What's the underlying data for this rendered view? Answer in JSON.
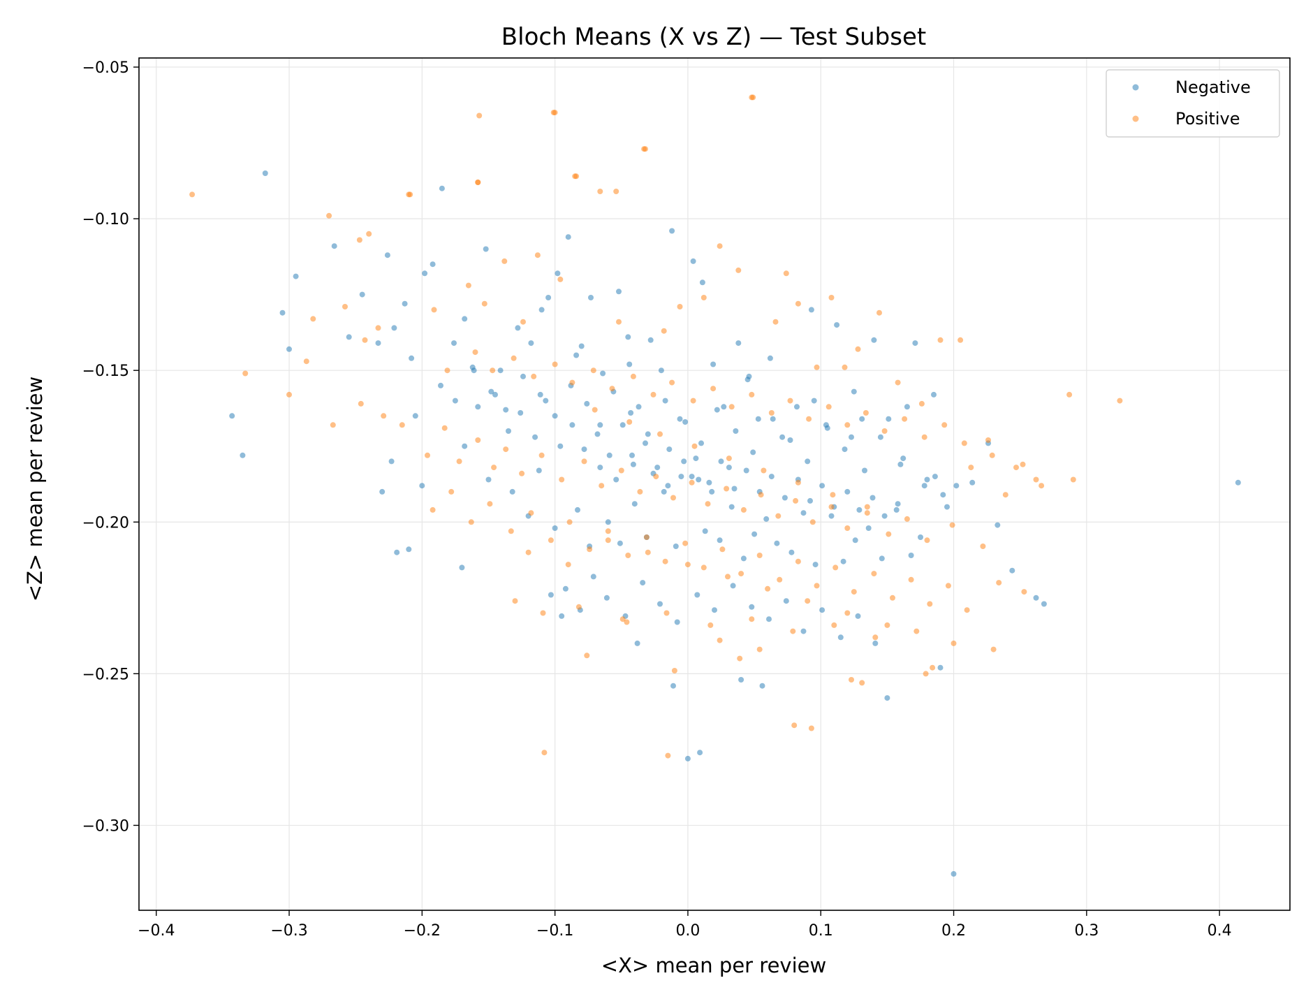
{
  "chart_data": {
    "type": "scatter",
    "title": "Bloch Means (X vs Z) — Test Subset",
    "xlabel": "<X> mean per review",
    "ylabel": "<Z> mean per review",
    "xlim": [
      -0.413,
      0.453
    ],
    "ylim": [
      -0.328,
      -0.047
    ],
    "x_ticks": [
      -0.4,
      -0.3,
      -0.2,
      -0.1,
      0.0,
      0.1,
      0.2,
      0.3,
      0.4
    ],
    "x_tick_labels": [
      "−0.4",
      "−0.3",
      "−0.2",
      "−0.1",
      "0.0",
      "0.1",
      "0.2",
      "0.3",
      "0.4"
    ],
    "y_ticks": [
      -0.05,
      -0.1,
      -0.15,
      -0.2,
      -0.25,
      -0.3
    ],
    "y_tick_labels": [
      "−0.05",
      "−0.10",
      "−0.15",
      "−0.20",
      "−0.25",
      "−0.30"
    ],
    "grid": true,
    "legend_position": "top-right",
    "series": [
      {
        "name": "Negative",
        "color": "#1f77b4",
        "x": [
          -0.318,
          -0.343,
          -0.335,
          -0.3,
          -0.295,
          -0.305,
          -0.266,
          -0.255,
          -0.245,
          -0.233,
          -0.226,
          -0.221,
          -0.213,
          -0.208,
          -0.205,
          -0.198,
          -0.192,
          -0.185,
          -0.176,
          -0.168,
          -0.161,
          -0.158,
          -0.152,
          -0.141,
          -0.128,
          -0.118,
          -0.105,
          -0.098,
          -0.09,
          -0.084,
          -0.073,
          -0.064,
          -0.052,
          -0.045,
          -0.037,
          -0.028,
          -0.02,
          -0.012,
          -0.006,
          0.004,
          0.011,
          0.019,
          0.027,
          0.038,
          0.046,
          0.053,
          0.062,
          0.071,
          0.082,
          0.093,
          0.104,
          0.112,
          0.123,
          0.131,
          0.14,
          0.151,
          0.16,
          0.171,
          0.178,
          0.186,
          0.192,
          0.202,
          0.214,
          0.226,
          0.233,
          0.244,
          0.262,
          0.268,
          0.414,
          0.2,
          0.19,
          0.15,
          0.056,
          0.04,
          0.009,
          0.0,
          -0.011,
          -0.038,
          -0.095,
          -0.103,
          -0.17,
          -0.219,
          -0.21,
          -0.23,
          -0.223,
          -0.2,
          -0.168,
          -0.15,
          -0.132,
          -0.12,
          -0.112,
          -0.1,
          -0.083,
          -0.074,
          -0.06,
          -0.051,
          -0.04,
          -0.031,
          -0.018,
          -0.009,
          0.003,
          0.013,
          0.024,
          0.033,
          0.042,
          0.05,
          0.059,
          0.067,
          0.078,
          0.087,
          0.096,
          0.108,
          0.117,
          0.126,
          0.136,
          0.146,
          0.157,
          0.168,
          0.175,
          -0.145,
          -0.135,
          -0.126,
          -0.115,
          -0.107,
          -0.096,
          -0.087,
          -0.078,
          -0.068,
          -0.059,
          -0.049,
          -0.041,
          -0.032,
          -0.023,
          -0.014,
          -0.005,
          0.006,
          0.016,
          0.025,
          0.035,
          0.044,
          0.054,
          0.063,
          0.073,
          0.083,
          0.092,
          0.101,
          0.11,
          0.12,
          0.129,
          0.139,
          0.148,
          0.158,
          -0.092,
          -0.081,
          -0.071,
          -0.061,
          -0.047,
          -0.034,
          -0.021,
          -0.008,
          0.007,
          0.02,
          0.034,
          0.048,
          0.061,
          0.074,
          0.087,
          0.101,
          0.115,
          0.128,
          0.141,
          -0.186,
          -0.175,
          -0.162,
          -0.148,
          -0.137,
          -0.124,
          -0.111,
          -0.1,
          -0.088,
          -0.076,
          -0.066,
          -0.056,
          -0.043,
          -0.03,
          -0.017,
          -0.002,
          0.01,
          0.022,
          0.036,
          0.049,
          0.064,
          0.077,
          0.09,
          0.105,
          0.118,
          0.133,
          0.145,
          0.162,
          0.18,
          0.195,
          -0.066,
          -0.054,
          -0.042,
          -0.026,
          -0.015,
          -0.003,
          0.008,
          0.018,
          0.031,
          -0.11,
          -0.08,
          -0.044,
          0.045,
          0.095,
          0.125,
          0.165,
          0.185
        ],
        "y": [
          -0.085,
          -0.165,
          -0.178,
          -0.143,
          -0.119,
          -0.131,
          -0.109,
          -0.139,
          -0.125,
          -0.141,
          -0.112,
          -0.136,
          -0.128,
          -0.146,
          -0.165,
          -0.118,
          -0.115,
          -0.09,
          -0.141,
          -0.133,
          -0.15,
          -0.162,
          -0.11,
          -0.15,
          -0.136,
          -0.141,
          -0.126,
          -0.118,
          -0.106,
          -0.145,
          -0.126,
          -0.151,
          -0.124,
          -0.139,
          -0.162,
          -0.14,
          -0.15,
          -0.104,
          -0.166,
          -0.114,
          -0.121,
          -0.148,
          -0.162,
          -0.141,
          -0.152,
          -0.166,
          -0.146,
          -0.172,
          -0.162,
          -0.13,
          -0.168,
          -0.135,
          -0.172,
          -0.166,
          -0.14,
          -0.166,
          -0.181,
          -0.141,
          -0.188,
          -0.185,
          -0.191,
          -0.188,
          -0.187,
          -0.174,
          -0.201,
          -0.216,
          -0.225,
          -0.227,
          -0.187,
          -0.316,
          -0.248,
          -0.258,
          -0.254,
          -0.252,
          -0.276,
          -0.278,
          -0.254,
          -0.24,
          -0.231,
          -0.224,
          -0.215,
          -0.21,
          -0.209,
          -0.19,
          -0.18,
          -0.188,
          -0.175,
          -0.186,
          -0.19,
          -0.198,
          -0.183,
          -0.202,
          -0.196,
          -0.208,
          -0.2,
          -0.207,
          -0.194,
          -0.205,
          -0.19,
          -0.208,
          -0.185,
          -0.203,
          -0.206,
          -0.195,
          -0.212,
          -0.204,
          -0.199,
          -0.207,
          -0.21,
          -0.197,
          -0.214,
          -0.198,
          -0.213,
          -0.206,
          -0.202,
          -0.212,
          -0.196,
          -0.211,
          -0.205,
          -0.158,
          -0.17,
          -0.164,
          -0.172,
          -0.16,
          -0.175,
          -0.168,
          -0.176,
          -0.171,
          -0.178,
          -0.168,
          -0.181,
          -0.174,
          -0.182,
          -0.176,
          -0.185,
          -0.179,
          -0.187,
          -0.18,
          -0.189,
          -0.183,
          -0.19,
          -0.185,
          -0.192,
          -0.186,
          -0.193,
          -0.188,
          -0.195,
          -0.19,
          -0.196,
          -0.192,
          -0.198,
          -0.194,
          -0.222,
          -0.229,
          -0.218,
          -0.225,
          -0.231,
          -0.22,
          -0.227,
          -0.233,
          -0.224,
          -0.229,
          -0.221,
          -0.228,
          -0.232,
          -0.226,
          -0.236,
          -0.229,
          -0.238,
          -0.231,
          -0.24,
          -0.155,
          -0.16,
          -0.149,
          -0.157,
          -0.163,
          -0.152,
          -0.158,
          -0.165,
          -0.155,
          -0.161,
          -0.168,
          -0.157,
          -0.164,
          -0.171,
          -0.16,
          -0.167,
          -0.174,
          -0.163,
          -0.17,
          -0.177,
          -0.166,
          -0.173,
          -0.18,
          -0.169,
          -0.176,
          -0.183,
          -0.172,
          -0.179,
          -0.186,
          -0.195,
          -0.182,
          -0.186,
          -0.178,
          -0.184,
          -0.188,
          -0.18,
          -0.186,
          -0.19,
          -0.182,
          -0.13,
          -0.142,
          -0.148,
          -0.153,
          -0.16,
          -0.157,
          -0.162,
          -0.158
        ],
        "marker_size": 4
      },
      {
        "name": "Positive",
        "color": "#ff7f0e",
        "x": [
          -0.373,
          -0.27,
          -0.247,
          -0.24,
          -0.282,
          -0.287,
          -0.258,
          -0.243,
          -0.233,
          -0.209,
          -0.191,
          -0.181,
          -0.165,
          -0.158,
          -0.153,
          -0.138,
          -0.124,
          -0.113,
          -0.1,
          -0.096,
          -0.085,
          -0.066,
          -0.052,
          -0.033,
          -0.018,
          -0.006,
          0.012,
          0.024,
          0.038,
          0.048,
          0.066,
          0.074,
          0.083,
          0.097,
          0.108,
          0.118,
          0.128,
          0.144,
          0.158,
          0.176,
          0.19,
          0.205,
          0.213,
          0.226,
          0.239,
          0.252,
          0.266,
          0.287,
          0.29,
          0.325,
          -0.157,
          -0.101,
          0.049,
          -0.032,
          -0.084,
          -0.054,
          -0.158,
          -0.21,
          -0.333,
          -0.3,
          -0.267,
          -0.246,
          -0.229,
          -0.215,
          -0.196,
          -0.183,
          -0.172,
          -0.158,
          -0.146,
          -0.137,
          -0.125,
          -0.11,
          -0.095,
          -0.078,
          -0.065,
          -0.05,
          -0.036,
          -0.024,
          -0.011,
          0.003,
          0.015,
          0.029,
          0.042,
          0.055,
          0.068,
          0.081,
          0.094,
          0.108,
          0.12,
          0.135,
          0.151,
          0.165,
          0.18,
          0.199,
          0.222,
          -0.192,
          -0.178,
          -0.163,
          -0.149,
          -0.133,
          -0.118,
          -0.103,
          -0.089,
          -0.074,
          -0.06,
          -0.045,
          -0.031,
          -0.017,
          -0.002,
          0.012,
          0.026,
          0.04,
          0.054,
          0.069,
          0.083,
          0.097,
          0.111,
          0.125,
          0.14,
          0.154,
          0.168,
          0.182,
          0.196,
          0.21,
          0.234,
          0.253,
          -0.16,
          -0.147,
          -0.131,
          -0.116,
          -0.1,
          -0.087,
          -0.071,
          -0.057,
          -0.041,
          -0.026,
          -0.012,
          0.004,
          0.019,
          0.033,
          0.048,
          0.063,
          0.077,
          0.091,
          0.106,
          0.12,
          0.134,
          0.148,
          0.163,
          0.178,
          0.193,
          0.208,
          0.229,
          0.247,
          0.262,
          -0.13,
          -0.109,
          -0.082,
          -0.049,
          -0.016,
          0.017,
          0.048,
          0.079,
          0.11,
          0.141,
          0.172,
          0.2,
          0.23,
          -0.108,
          -0.076,
          -0.046,
          -0.015,
          -0.01,
          0.024,
          0.039,
          0.054,
          0.08,
          0.093,
          0.123,
          0.131,
          0.179,
          0.184,
          -0.07,
          -0.044,
          -0.021,
          0.005,
          0.031,
          0.057,
          0.083,
          0.109,
          0.135,
          -0.12,
          -0.09,
          -0.06,
          -0.03,
          0.0,
          0.03,
          0.06,
          0.09,
          0.12,
          0.15
        ],
        "y": [
          -0.092,
          -0.099,
          -0.107,
          -0.105,
          -0.133,
          -0.147,
          -0.129,
          -0.14,
          -0.136,
          -0.092,
          -0.13,
          -0.15,
          -0.122,
          -0.088,
          -0.128,
          -0.114,
          -0.134,
          -0.112,
          -0.065,
          -0.12,
          -0.086,
          -0.091,
          -0.134,
          -0.077,
          -0.137,
          -0.129,
          -0.126,
          -0.109,
          -0.117,
          -0.06,
          -0.134,
          -0.118,
          -0.128,
          -0.149,
          -0.126,
          -0.149,
          -0.143,
          -0.131,
          -0.154,
          -0.161,
          -0.14,
          -0.14,
          -0.182,
          -0.173,
          -0.191,
          -0.181,
          -0.188,
          -0.158,
          -0.186,
          -0.16,
          -0.066,
          -0.065,
          -0.06,
          -0.077,
          -0.086,
          -0.091,
          -0.088,
          -0.092,
          -0.151,
          -0.158,
          -0.168,
          -0.161,
          -0.165,
          -0.168,
          -0.178,
          -0.169,
          -0.18,
          -0.173,
          -0.182,
          -0.176,
          -0.184,
          -0.178,
          -0.186,
          -0.18,
          -0.188,
          -0.183,
          -0.19,
          -0.185,
          -0.192,
          -0.187,
          -0.194,
          -0.189,
          -0.196,
          -0.191,
          -0.198,
          -0.193,
          -0.2,
          -0.195,
          -0.202,
          -0.197,
          -0.204,
          -0.199,
          -0.206,
          -0.201,
          -0.208,
          -0.196,
          -0.19,
          -0.2,
          -0.194,
          -0.203,
          -0.197,
          -0.206,
          -0.2,
          -0.209,
          -0.203,
          -0.211,
          -0.205,
          -0.213,
          -0.207,
          -0.215,
          -0.209,
          -0.217,
          -0.211,
          -0.219,
          -0.213,
          -0.221,
          -0.215,
          -0.223,
          -0.217,
          -0.225,
          -0.219,
          -0.227,
          -0.221,
          -0.229,
          -0.22,
          -0.223,
          -0.144,
          -0.15,
          -0.146,
          -0.152,
          -0.148,
          -0.154,
          -0.15,
          -0.156,
          -0.152,
          -0.158,
          -0.154,
          -0.16,
          -0.156,
          -0.162,
          -0.158,
          -0.164,
          -0.16,
          -0.166,
          -0.162,
          -0.168,
          -0.164,
          -0.17,
          -0.166,
          -0.172,
          -0.168,
          -0.174,
          -0.178,
          -0.182,
          -0.186,
          -0.226,
          -0.23,
          -0.228,
          -0.232,
          -0.23,
          -0.234,
          -0.232,
          -0.236,
          -0.234,
          -0.238,
          -0.236,
          -0.24,
          -0.242,
          -0.276,
          -0.244,
          -0.233,
          -0.277,
          -0.249,
          -0.239,
          -0.245,
          -0.242,
          -0.267,
          -0.268,
          -0.252,
          -0.253,
          -0.25,
          -0.248,
          -0.163,
          -0.167,
          -0.171,
          -0.175,
          -0.179,
          -0.183,
          -0.187,
          -0.191,
          -0.195,
          -0.21,
          -0.214,
          -0.206,
          -0.21,
          -0.214,
          -0.218,
          -0.222,
          -0.226,
          -0.23,
          -0.234
        ],
        "marker_size": 4
      }
    ]
  }
}
